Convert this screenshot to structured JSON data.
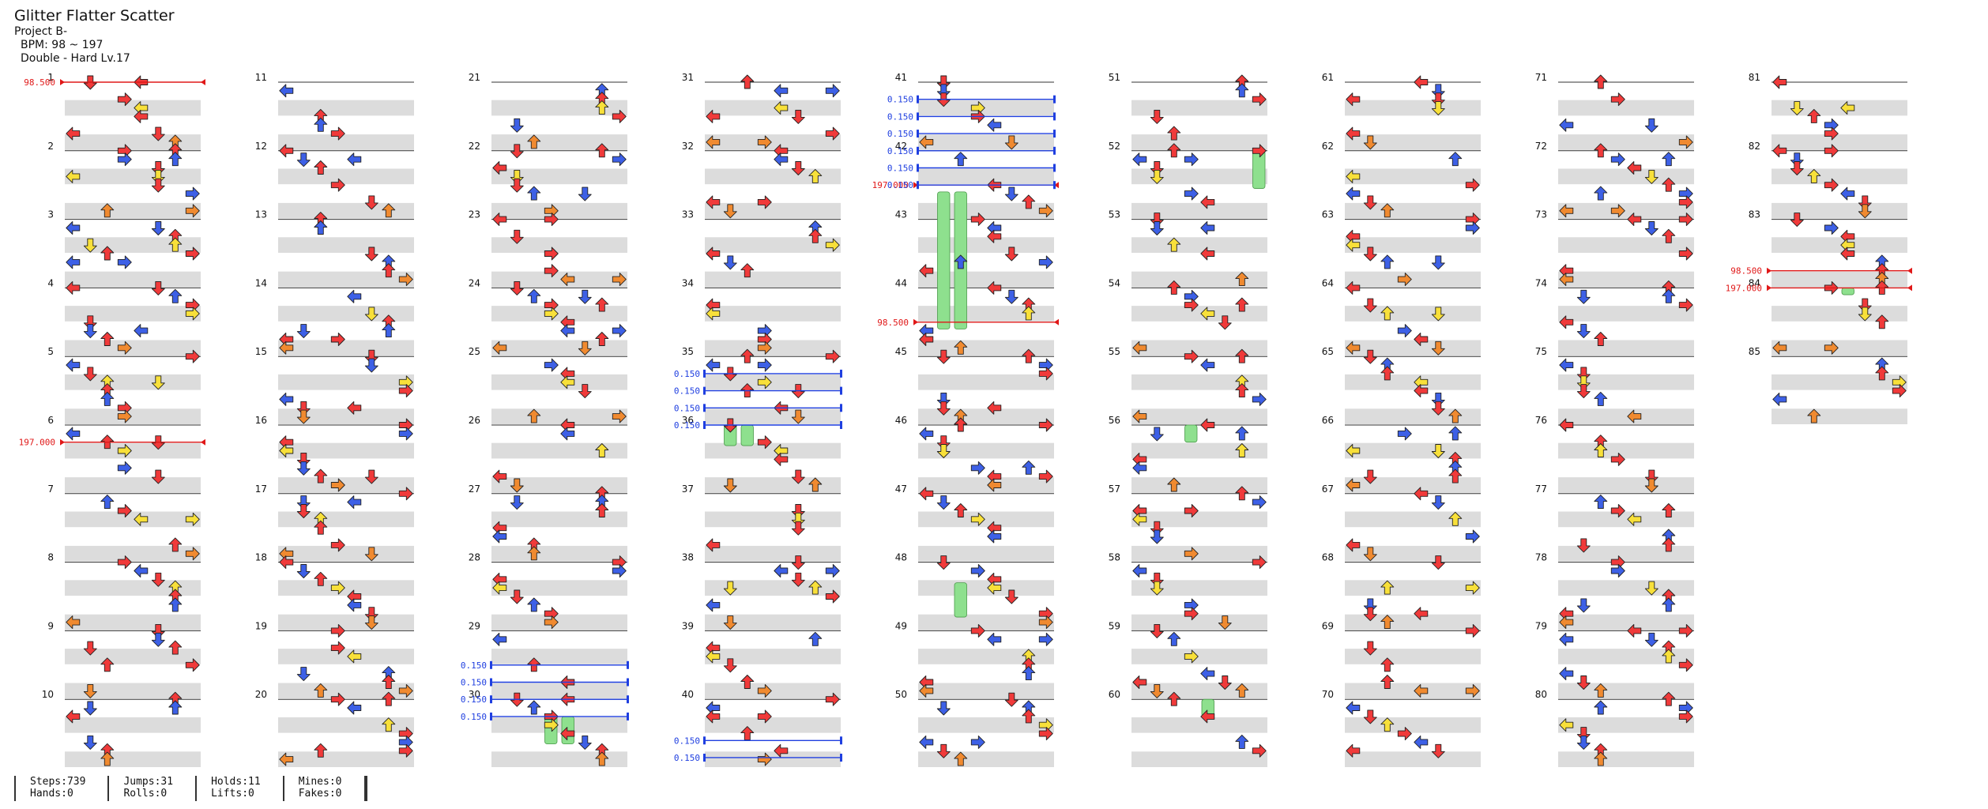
{
  "header": {
    "title": "Glitter Flatter Scatter",
    "artist": "Project B-",
    "bpm": "BPM: 98 ~ 197",
    "difficulty": "Double - Hard Lv.17"
  },
  "colors": {
    "red": "#f03a3a",
    "blue": "#3d60e6",
    "yellow": "#f8e03a",
    "orange": "#f08a30",
    "purple": "#c050f0",
    "hold_green": "#8ee08e",
    "bpm_marker": "#e01818",
    "stop_marker": "#1f3fe0",
    "row_gray": "#dcdcdc"
  },
  "chart": {
    "measures_per_column": 10,
    "total_measures": 85,
    "bpm_changes": [
      {
        "measure": 1,
        "value": "98.500"
      },
      {
        "measure": 6.25,
        "value": "197.000"
      },
      {
        "measure": 42.5,
        "value": "197.000"
      },
      {
        "measure": 44.5,
        "value": "98.500"
      },
      {
        "measure": 83.75,
        "value": "98.500"
      },
      {
        "measure": 84,
        "value": "197.000"
      }
    ],
    "stops": [
      {
        "measure": 29.5,
        "value": "0.150"
      },
      {
        "measure": 29.75,
        "value": "0.150"
      },
      {
        "measure": 30,
        "value": "0.150"
      },
      {
        "measure": 30.25,
        "value": "0.150"
      },
      {
        "measure": 35.25,
        "value": "0.150"
      },
      {
        "measure": 35.5,
        "value": "0.150"
      },
      {
        "measure": 35.75,
        "value": "0.150"
      },
      {
        "measure": 36,
        "value": "0.150"
      },
      {
        "measure": 40.6,
        "value": "0.150"
      },
      {
        "measure": 40.85,
        "value": "0.150"
      },
      {
        "measure": 41.25,
        "value": "0.150"
      },
      {
        "measure": 41.5,
        "value": "0.150"
      },
      {
        "measure": 41.75,
        "value": "0.150"
      },
      {
        "measure": 42,
        "value": "0.150"
      },
      {
        "measure": 42.25,
        "value": "0.150"
      },
      {
        "measure": 42.5,
        "value": "0.150"
      }
    ]
  },
  "stats": {
    "steps": "Steps:739",
    "hands": "Hands:0",
    "jumps": "Jumps:31",
    "rolls": "Rolls:0",
    "holds": "Holds:11",
    "lifts": "Lifts:0",
    "mines": "Mines:0",
    "fakes": "Fakes:0"
  }
}
